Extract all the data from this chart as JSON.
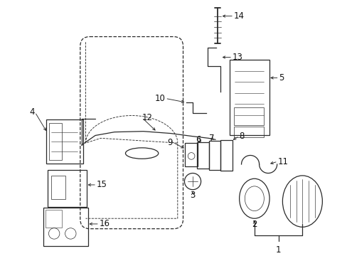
{
  "bg_color": "#ffffff",
  "line_color": "#2a2a2a",
  "label_color": "#111111",
  "font_size": 8.5,
  "fig_w": 4.89,
  "fig_h": 3.6,
  "dpi": 100
}
